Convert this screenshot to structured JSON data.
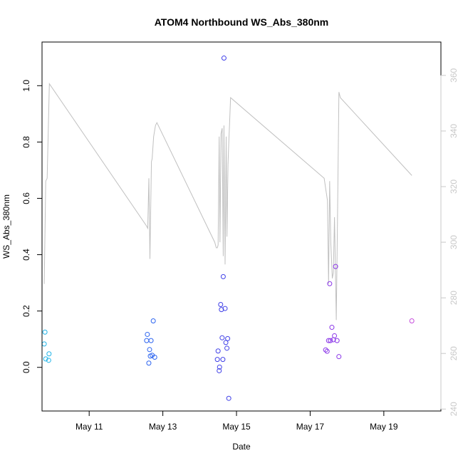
{
  "chart_data": {
    "type": "scatter",
    "title": "ATOM4 Northbound WS_Abs_380nm",
    "xlabel": "Date",
    "ylabel": "WS_Abs_380nm",
    "x_unit": "day of May",
    "xlim": [
      9.72,
      20.55
    ],
    "ylim": [
      -0.155,
      1.155
    ],
    "y2lim": [
      239.3,
      372.0
    ],
    "x_ticks": [
      {
        "value": 11,
        "label": "May 11"
      },
      {
        "value": 13,
        "label": "May 13"
      },
      {
        "value": 15,
        "label": "May 15"
      },
      {
        "value": 17,
        "label": "May 17"
      },
      {
        "value": 19,
        "label": "May 19"
      }
    ],
    "y_ticks": [
      {
        "value": 0.0,
        "label": "0.0"
      },
      {
        "value": 0.2,
        "label": "0.2"
      },
      {
        "value": 0.4,
        "label": "0.4"
      },
      {
        "value": 0.6,
        "label": "0.6"
      },
      {
        "value": 0.8,
        "label": "0.8"
      },
      {
        "value": 1.0,
        "label": "1.0"
      }
    ],
    "y2_ticks": [
      {
        "value": 240,
        "label": "240"
      },
      {
        "value": 260,
        "label": "260"
      },
      {
        "value": 280,
        "label": "280"
      },
      {
        "value": 300,
        "label": "300"
      },
      {
        "value": 320,
        "label": "320"
      },
      {
        "value": 340,
        "label": "340"
      },
      {
        "value": 360,
        "label": "360"
      }
    ],
    "grid": false,
    "colors": {
      "axis": "#000000",
      "secondary_axis": "#c8c8c8",
      "line": "#c0c0c0"
    },
    "series": [
      {
        "type": "scatter",
        "axis": "left",
        "marker": "open-circle",
        "points": [
          {
            "x": 9.78,
            "y": 0.083,
            "color": "#22b4e8"
          },
          {
            "x": 9.8,
            "y": 0.125,
            "color": "#22b4e8"
          },
          {
            "x": 9.82,
            "y": 0.03,
            "color": "#22b4e8"
          },
          {
            "x": 9.9,
            "y": 0.025,
            "color": "#22b4e8"
          },
          {
            "x": 9.91,
            "y": 0.048,
            "color": "#22b4e8"
          },
          {
            "x": 12.56,
            "y": 0.095,
            "color": "#2c64f0"
          },
          {
            "x": 12.58,
            "y": 0.117,
            "color": "#2c64f0"
          },
          {
            "x": 12.62,
            "y": 0.015,
            "color": "#2c64f0"
          },
          {
            "x": 12.64,
            "y": 0.063,
            "color": "#2c64f0"
          },
          {
            "x": 12.66,
            "y": 0.04,
            "color": "#2c64f0"
          },
          {
            "x": 12.68,
            "y": 0.095,
            "color": "#2c64f0"
          },
          {
            "x": 12.71,
            "y": 0.043,
            "color": "#2c64f0"
          },
          {
            "x": 12.74,
            "y": 0.165,
            "color": "#2c64f0"
          },
          {
            "x": 12.78,
            "y": 0.036,
            "color": "#2c64f0"
          },
          {
            "x": 14.48,
            "y": 0.028,
            "color": "#4040e8"
          },
          {
            "x": 14.5,
            "y": 0.058,
            "color": "#4040e8"
          },
          {
            "x": 14.53,
            "y": -0.012,
            "color": "#4040e8"
          },
          {
            "x": 14.54,
            "y": 0.001,
            "color": "#4040e8"
          },
          {
            "x": 14.57,
            "y": 0.223,
            "color": "#4040e8"
          },
          {
            "x": 14.59,
            "y": 0.205,
            "color": "#4040e8"
          },
          {
            "x": 14.61,
            "y": 0.105,
            "color": "#4040e8"
          },
          {
            "x": 14.63,
            "y": 0.028,
            "color": "#4040e8"
          },
          {
            "x": 14.64,
            "y": 0.322,
            "color": "#4040e8"
          },
          {
            "x": 14.66,
            "y": 1.098,
            "color": "#4040e8"
          },
          {
            "x": 14.69,
            "y": 0.209,
            "color": "#4040e8"
          },
          {
            "x": 14.71,
            "y": 0.088,
            "color": "#4040e8"
          },
          {
            "x": 14.74,
            "y": 0.068,
            "color": "#4040e8"
          },
          {
            "x": 14.76,
            "y": 0.102,
            "color": "#4040e8"
          },
          {
            "x": 14.79,
            "y": -0.11,
            "color": "#4040e8"
          },
          {
            "x": 17.42,
            "y": 0.062,
            "color": "#8a36e8"
          },
          {
            "x": 17.46,
            "y": 0.057,
            "color": "#8a36e8"
          },
          {
            "x": 17.5,
            "y": 0.095,
            "color": "#8a36e8"
          },
          {
            "x": 17.53,
            "y": 0.297,
            "color": "#8a36e8"
          },
          {
            "x": 17.55,
            "y": 0.095,
            "color": "#8a36e8"
          },
          {
            "x": 17.59,
            "y": 0.142,
            "color": "#8a36e8"
          },
          {
            "x": 17.63,
            "y": 0.098,
            "color": "#8a36e8"
          },
          {
            "x": 17.66,
            "y": 0.112,
            "color": "#8a36e8"
          },
          {
            "x": 17.69,
            "y": 0.358,
            "color": "#8a36e8"
          },
          {
            "x": 17.73,
            "y": 0.095,
            "color": "#8a36e8"
          },
          {
            "x": 17.78,
            "y": 0.038,
            "color": "#8a36e8"
          },
          {
            "x": 19.76,
            "y": 0.165,
            "color": "#c64cdc"
          }
        ]
      },
      {
        "type": "line",
        "axis": "right",
        "color": "#c0c0c0",
        "points": [
          [
            9.78,
            285
          ],
          [
            9.82,
            322
          ],
          [
            9.86,
            323
          ],
          [
            9.92,
            357
          ],
          [
            12.55,
            306
          ],
          [
            12.59,
            305
          ],
          [
            12.62,
            323
          ],
          [
            12.65,
            294
          ],
          [
            12.69,
            329
          ],
          [
            12.71,
            330
          ],
          [
            12.75,
            338
          ],
          [
            12.8,
            342
          ],
          [
            12.84,
            343
          ],
          [
            14.41,
            300
          ],
          [
            14.45,
            298
          ],
          [
            14.48,
            298
          ],
          [
            14.5,
            299
          ],
          [
            14.53,
            338
          ],
          [
            14.55,
            300
          ],
          [
            14.58,
            339
          ],
          [
            14.61,
            341
          ],
          [
            14.64,
            295
          ],
          [
            14.66,
            342
          ],
          [
            14.69,
            292
          ],
          [
            14.72,
            338
          ],
          [
            14.74,
            302
          ],
          [
            14.77,
            328
          ],
          [
            14.79,
            336
          ],
          [
            14.81,
            342
          ],
          [
            14.84,
            352
          ],
          [
            17.38,
            323
          ],
          [
            17.47,
            315
          ],
          [
            17.5,
            285
          ],
          [
            17.53,
            322
          ],
          [
            17.56,
            300
          ],
          [
            17.6,
            287
          ],
          [
            17.63,
            289
          ],
          [
            17.66,
            309
          ],
          [
            17.71,
            272
          ],
          [
            17.74,
            306
          ],
          [
            17.78,
            354
          ],
          [
            17.82,
            352
          ],
          [
            19.76,
            324
          ]
        ]
      }
    ]
  }
}
